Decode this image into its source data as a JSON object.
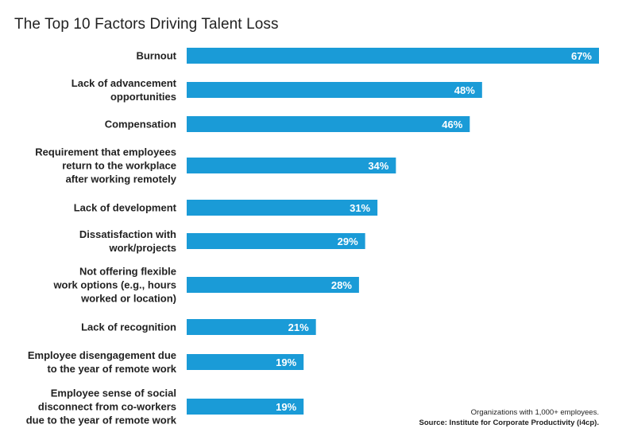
{
  "chart_data": {
    "type": "bar",
    "orientation": "horizontal",
    "title": "The Top 10 Factors Driving Talent Loss",
    "categories": [
      [
        "Burnout"
      ],
      [
        "Lack of advancement",
        "opportunities"
      ],
      [
        "Compensation"
      ],
      [
        "Requirement that employees",
        "return to the workplace",
        "after working remotely"
      ],
      [
        "Lack of development"
      ],
      [
        "Dissatisfaction with",
        "work/projects"
      ],
      [
        "Not offering flexible",
        "work options (e.g., hours",
        "worked or location)"
      ],
      [
        "Lack of recognition"
      ],
      [
        "Employee disengagement due",
        "to the year of remote work"
      ],
      [
        "Employee sense of social",
        "disconnect from co-workers",
        "due to the year of remote work"
      ]
    ],
    "values": [
      67,
      48,
      46,
      34,
      31,
      29,
      28,
      21,
      19,
      19
    ],
    "value_labels": [
      "67%",
      "48%",
      "46%",
      "34%",
      "31%",
      "29%",
      "28%",
      "21%",
      "19%",
      "19%"
    ],
    "bar_color": "#1a9bd7",
    "grid": false,
    "legend": "none"
  },
  "footnote": {
    "line1": "Organizations with 1,000+ employees.",
    "line2": "Source: Institute for Corporate Productivity (i4cp)."
  }
}
